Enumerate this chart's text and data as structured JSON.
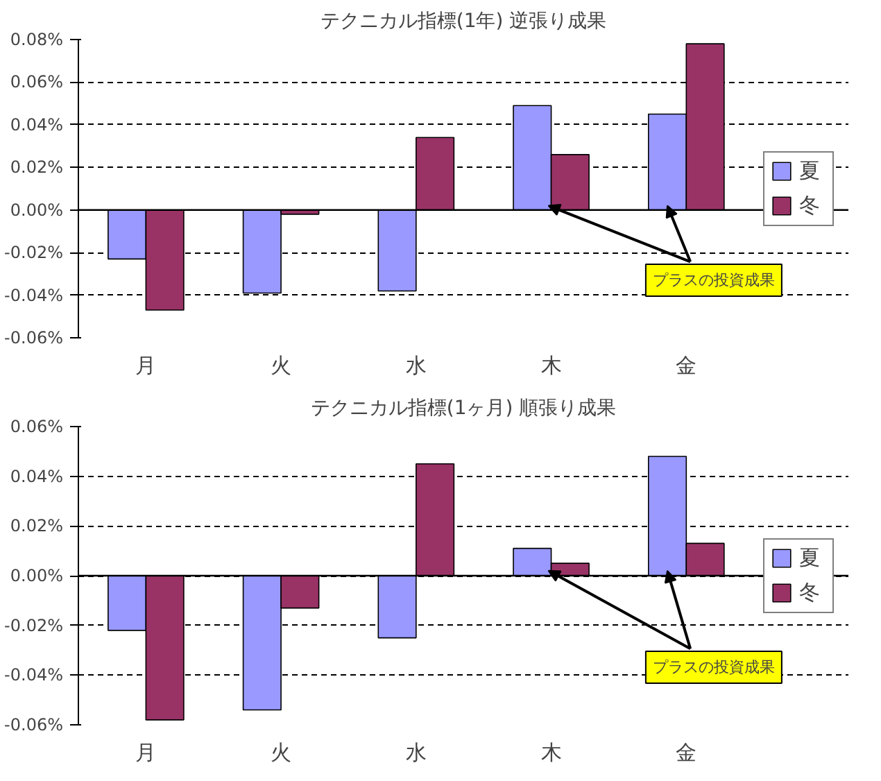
{
  "chart_data": [
    {
      "type": "bar",
      "title": "テクニカル指標(1年) 逆張り成果",
      "categories": [
        "月",
        "火",
        "水",
        "木",
        "金"
      ],
      "series": [
        {
          "name": "夏",
          "color": "#9999ff",
          "values": [
            -0.023,
            -0.039,
            -0.038,
            0.049,
            0.045
          ]
        },
        {
          "name": "冬",
          "color": "#993366",
          "values": [
            -0.047,
            -0.002,
            0.034,
            0.026,
            0.078
          ]
        }
      ],
      "ylim": [
        -0.06,
        0.08
      ],
      "yticks": [
        {
          "value": -0.06,
          "label": "-0.06%"
        },
        {
          "value": -0.04,
          "label": "-0.04%"
        },
        {
          "value": -0.02,
          "label": "-0.02%"
        },
        {
          "value": 0,
          "label": "0.00%"
        },
        {
          "value": 0.02,
          "label": "0.02%"
        },
        {
          "value": 0.04,
          "label": "0.04%"
        },
        {
          "value": 0.06,
          "label": "0.06%"
        },
        {
          "value": 0.08,
          "label": "0.08%"
        }
      ],
      "grid": "y",
      "legend": "right",
      "ref_lines": [
        {
          "axis": "y",
          "value": 0,
          "color": "#000000"
        }
      ],
      "annotations": [
        {
          "text": "プラスの投資成果",
          "x": "木",
          "y": 0.002
        }
      ]
    },
    {
      "type": "bar",
      "title": "テクニカル指標(1ヶ月) 順張り成果",
      "categories": [
        "月",
        "火",
        "水",
        "木",
        "金"
      ],
      "series": [
        {
          "name": "夏",
          "color": "#9999ff",
          "values": [
            -0.022,
            -0.054,
            -0.025,
            0.011,
            0.048
          ]
        },
        {
          "name": "冬",
          "color": "#993366",
          "values": [
            -0.058,
            -0.013,
            0.045,
            0.005,
            0.013
          ]
        }
      ],
      "ylim": [
        -0.06,
        0.06
      ],
      "yticks": [
        {
          "value": -0.06,
          "label": "-0.06%"
        },
        {
          "value": -0.04,
          "label": "-0.04%"
        },
        {
          "value": -0.02,
          "label": "-0.02%"
        },
        {
          "value": 0,
          "label": "0.00%"
        },
        {
          "value": 0.02,
          "label": "0.02%"
        },
        {
          "value": 0.04,
          "label": "0.04%"
        },
        {
          "value": 0.06,
          "label": "0.06%"
        }
      ],
      "grid": "y",
      "legend": "right",
      "ref_lines": [
        {
          "axis": "y",
          "value": 0,
          "color": "#000000"
        }
      ],
      "annotations": [
        {
          "text": "プラスの投資成果",
          "x": "木",
          "y": 0.002
        }
      ]
    }
  ]
}
